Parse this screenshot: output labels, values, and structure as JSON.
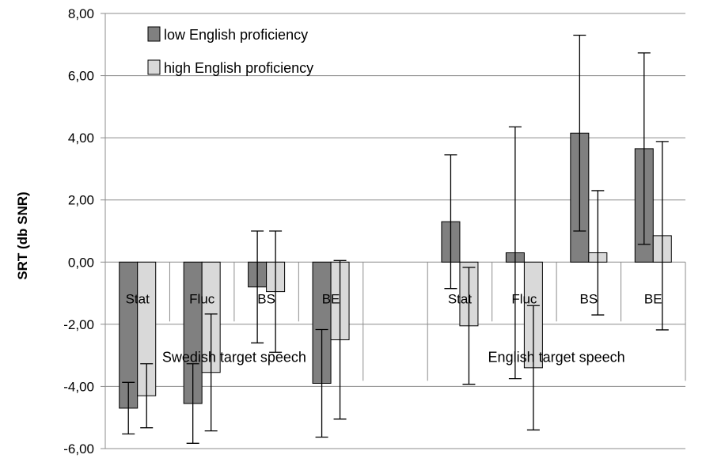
{
  "chart_data": {
    "type": "bar",
    "ylabel": "SRT (db SNR)",
    "ylim": [
      -6,
      8
    ],
    "yticks": [
      "-6,00",
      "-4,00",
      "-2,00",
      "0,00",
      "2,00",
      "4,00",
      "6,00",
      "8,00"
    ],
    "grid": true,
    "legend_position": "top-left",
    "groups": [
      {
        "label": "Swedish target speech",
        "categories": [
          "Stat",
          "Fluc",
          "BS",
          "BE"
        ]
      },
      {
        "label": "English target speech",
        "categories": [
          "Stat",
          "Fluc",
          "BS",
          "BE"
        ]
      }
    ],
    "series": [
      {
        "name": "low English proficiency",
        "color": "#808080",
        "values": [
          -4.7,
          -4.55,
          -0.8,
          -3.9,
          1.3,
          0.3,
          4.15,
          3.65
        ],
        "error": [
          0.83,
          1.28,
          1.8,
          1.73,
          2.15,
          4.05,
          3.15,
          3.08
        ]
      },
      {
        "name": "high English proficiency",
        "color": "#d9d9d9",
        "values": [
          -4.3,
          -3.55,
          -0.95,
          -2.5,
          -2.05,
          -3.4,
          0.3,
          0.85
        ],
        "error": [
          1.03,
          1.88,
          1.95,
          2.55,
          1.88,
          2.0,
          2.0,
          3.03
        ]
      }
    ]
  }
}
